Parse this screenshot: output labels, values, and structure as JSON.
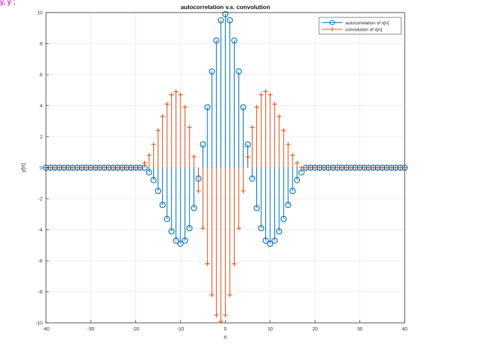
{
  "corner_fragment": "y, y ;",
  "chart_data": {
    "type": "stem",
    "title": "autocorrelation v.s. convolution",
    "xlabel": "n",
    "ylabel": "y[n]",
    "xlim": [
      -40,
      40
    ],
    "ylim": [
      -10,
      10
    ],
    "xticks": [
      -40,
      -30,
      -20,
      -10,
      0,
      10,
      20,
      30,
      40
    ],
    "yticks": [
      -10,
      -8,
      -6,
      -4,
      -2,
      0,
      2,
      4,
      6,
      8,
      10
    ],
    "grid": true,
    "legend_position": "top-right",
    "n": [
      -40,
      -39,
      -38,
      -37,
      -36,
      -35,
      -34,
      -33,
      -32,
      -31,
      -30,
      -29,
      -28,
      -27,
      -26,
      -25,
      -24,
      -23,
      -22,
      -21,
      -20,
      -19,
      -18,
      -17,
      -16,
      -15,
      -14,
      -13,
      -12,
      -11,
      -10,
      -9,
      -8,
      -7,
      -6,
      -5,
      -4,
      -3,
      -2,
      -1,
      0,
      1,
      2,
      3,
      4,
      5,
      6,
      7,
      8,
      9,
      10,
      11,
      12,
      13,
      14,
      15,
      16,
      17,
      18,
      19,
      20,
      21,
      22,
      23,
      24,
      25,
      26,
      27,
      28,
      29,
      30,
      31,
      32,
      33,
      34,
      35,
      36,
      37,
      38,
      39,
      40
    ],
    "series": [
      {
        "name": "autocorrelation of x[n]",
        "color": "#0072BD",
        "marker": "circle",
        "values": [
          0,
          0,
          0,
          0,
          0,
          0,
          0,
          0,
          0,
          0,
          0,
          0,
          0,
          0,
          0,
          0,
          0,
          0,
          0,
          0,
          0,
          0,
          0,
          -0.3,
          -0.8,
          -1.5,
          -2.4,
          -3.3,
          -4.1,
          -4.7,
          -4.9,
          -4.7,
          -3.9,
          -2.6,
          -0.7,
          1.5,
          3.9,
          6.2,
          8.2,
          9.5,
          9.9,
          9.5,
          8.2,
          6.2,
          3.9,
          1.5,
          -0.7,
          -2.6,
          -3.9,
          -4.7,
          -4.9,
          -4.7,
          -4.1,
          -3.3,
          -2.4,
          -1.5,
          -0.8,
          -0.3,
          0,
          0,
          0,
          0,
          0,
          0,
          0,
          0,
          0,
          0,
          0,
          0,
          0,
          0,
          0,
          0,
          0,
          0,
          0,
          0,
          0,
          0,
          0
        ]
      },
      {
        "name": "convolution of x[n]",
        "color": "#D95319",
        "marker": "plus",
        "values": [
          0,
          0,
          0,
          0,
          0,
          0,
          0,
          0,
          0,
          0,
          0,
          0,
          0,
          0,
          0,
          0,
          0,
          0,
          0,
          0,
          0,
          0,
          0.3,
          0.8,
          1.5,
          2.4,
          3.3,
          4.1,
          4.7,
          4.9,
          4.7,
          3.9,
          2.6,
          0.7,
          -1.5,
          -3.9,
          -6.2,
          -8.2,
          -9.5,
          -9.9,
          -9.5,
          -8.2,
          -6.2,
          -3.9,
          -1.5,
          0.7,
          2.6,
          3.9,
          4.7,
          4.9,
          4.7,
          4.1,
          3.3,
          2.4,
          1.5,
          0.8,
          0.3,
          0,
          0,
          0,
          0,
          0,
          0,
          0,
          0,
          0,
          0,
          0,
          0,
          0,
          0,
          0,
          0,
          0,
          0,
          0,
          0,
          0,
          0,
          0,
          0
        ]
      }
    ]
  }
}
